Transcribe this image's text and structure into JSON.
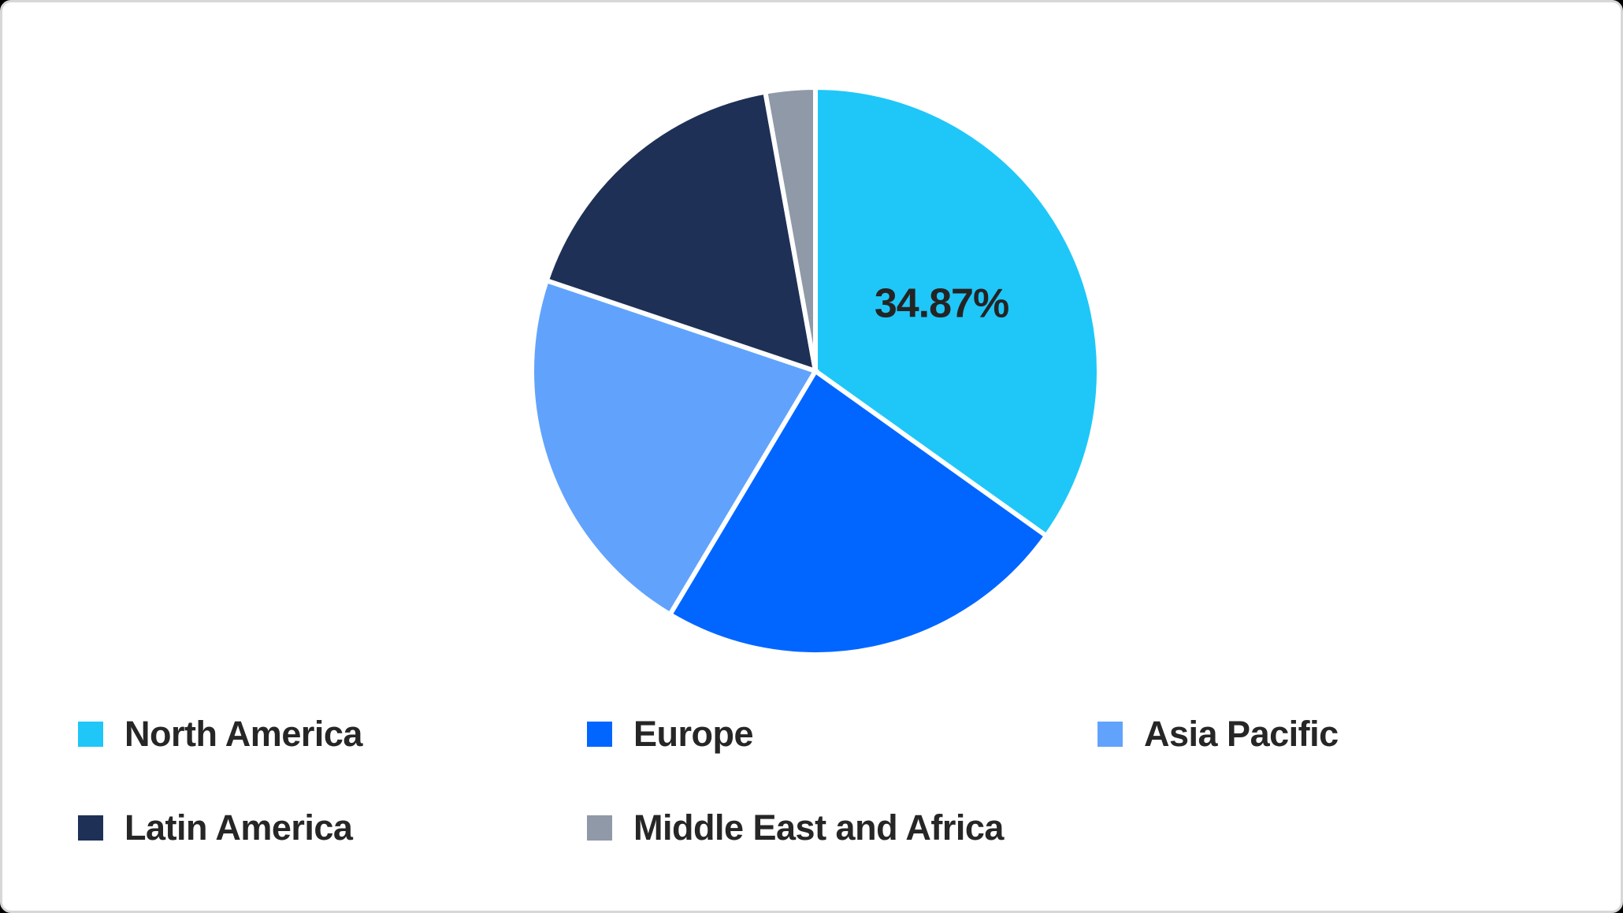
{
  "frame": {
    "card_background": "#ffffff",
    "card_border_color": "#d7d7d7",
    "outer_corner_color": "#000000"
  },
  "chart_data": {
    "type": "pie",
    "title": "",
    "start_angle_deg": 0,
    "direction": "clockwise",
    "donut": false,
    "values_are_percent": true,
    "separator_color": "#ffffff",
    "separator_width": 6,
    "data_label_color": "#242424",
    "label_radius_ratio": 0.5,
    "legend_position": "bottom",
    "slices": [
      {
        "label": "North America",
        "value": 34.87,
        "color": "#1EC7F8",
        "data_label": "34.87%"
      },
      {
        "label": "Europe",
        "value": 23.7,
        "color": "#0066FF"
      },
      {
        "label": "Asia Pacific",
        "value": 21.6,
        "color": "#61A3FC"
      },
      {
        "label": "Latin America",
        "value": 17.0,
        "color": "#1E3056"
      },
      {
        "label": "Middle East and Africa",
        "value": 2.83,
        "color": "#9099A7"
      }
    ]
  }
}
